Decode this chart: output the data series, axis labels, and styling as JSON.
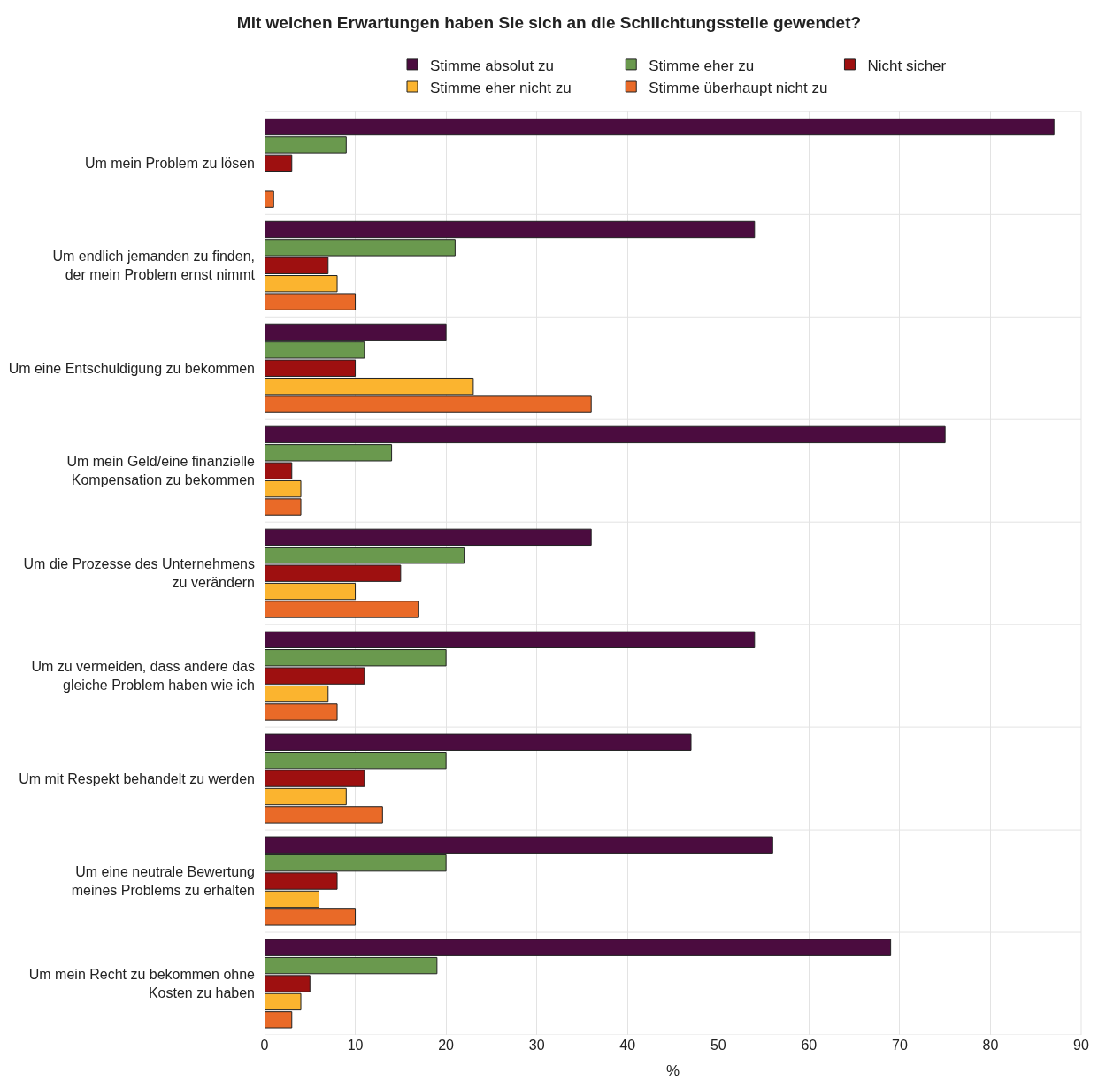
{
  "chart_data": {
    "type": "bar",
    "orientation": "horizontal",
    "title": "Mit welchen Erwartungen haben Sie sich an die Schlichtungsstelle gewendet?",
    "xlabel": "%",
    "categories": [
      "Um mein Problem zu lösen",
      "Um endlich jemanden zu finden,\nder mein Problem ernst nimmt",
      "Um eine Entschuldigung zu bekommen",
      "Um mein Geld/eine finanzielle\nKompensation zu bekommen",
      "Um die Prozesse des Unternehmens\nzu verändern",
      "Um zu vermeiden, dass andere das\ngleiche Problem haben wie ich",
      "Um mit Respekt behandelt zu werden",
      "Um eine neutrale Bewertung\nmeines Problems zu erhalten",
      "Um mein Recht zu bekommen ohne\nKosten zu haben"
    ],
    "series": [
      {
        "name": "Stimme absolut zu",
        "color": "#4b0c3f",
        "values": [
          87,
          54,
          20,
          75,
          36,
          54,
          47,
          56,
          69
        ]
      },
      {
        "name": "Stimme eher zu",
        "color": "#6a994e",
        "values": [
          9,
          21,
          11,
          14,
          22,
          20,
          20,
          20,
          19
        ]
      },
      {
        "name": "Nicht sicher",
        "color": "#9e1010",
        "values": [
          3,
          7,
          10,
          3,
          15,
          11,
          11,
          8,
          5
        ]
      },
      {
        "name": "Stimme eher nicht zu",
        "color": "#fbb42f",
        "values": [
          null,
          8,
          23,
          4,
          10,
          7,
          9,
          6,
          4
        ]
      },
      {
        "name": "Stimme überhaupt nicht zu",
        "color": "#e96a28",
        "values": [
          1,
          10,
          36,
          4,
          17,
          8,
          13,
          10,
          3
        ]
      }
    ],
    "xlim": [
      0,
      90
    ],
    "xticks": [
      0,
      10,
      20,
      30,
      40,
      50,
      60,
      70,
      80,
      90
    ],
    "grid": true,
    "legend": "top"
  }
}
